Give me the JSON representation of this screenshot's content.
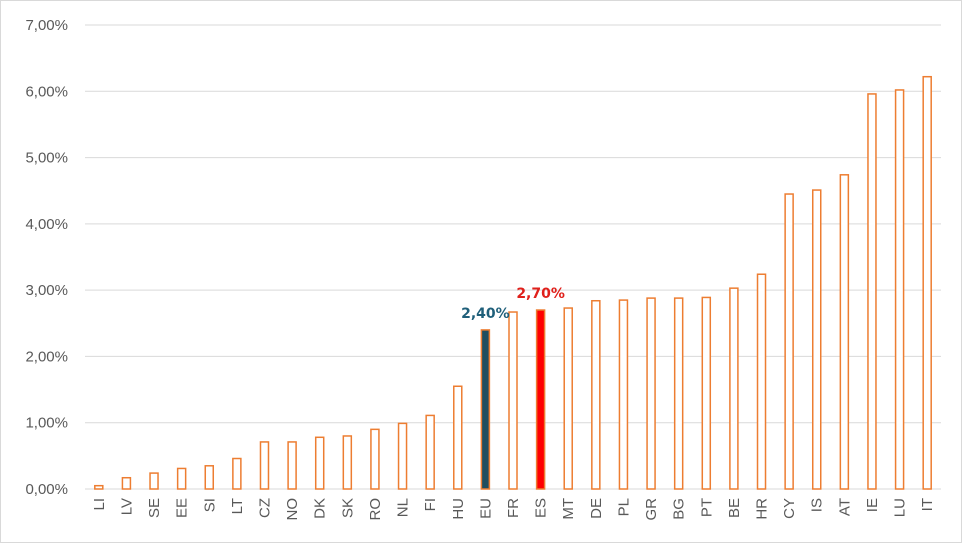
{
  "chart_data": {
    "type": "bar",
    "title": "",
    "xlabel": "",
    "ylabel": "",
    "ylim": [
      0,
      0.07
    ],
    "y_ticks": [
      {
        "value": 0.0,
        "label": "0,00%"
      },
      {
        "value": 0.01,
        "label": "1,00%"
      },
      {
        "value": 0.02,
        "label": "2,00%"
      },
      {
        "value": 0.03,
        "label": "3,00%"
      },
      {
        "value": 0.04,
        "label": "4,00%"
      },
      {
        "value": 0.05,
        "label": "5,00%"
      },
      {
        "value": 0.06,
        "label": "6,00%"
      },
      {
        "value": 0.07,
        "label": "7,00%"
      }
    ],
    "grid": true,
    "legend": "none",
    "categories": [
      "LI",
      "LV",
      "SE",
      "EE",
      "SI",
      "LT",
      "CZ",
      "NO",
      "DK",
      "SK",
      "RO",
      "NL",
      "FI",
      "HU",
      "EU",
      "FR",
      "ES",
      "MT",
      "DE",
      "PL",
      "GR",
      "BG",
      "PT",
      "BE",
      "HR",
      "CY",
      "IS",
      "AT",
      "IE",
      "LU",
      "IT"
    ],
    "values": [
      0.0005,
      0.0017,
      0.0024,
      0.0031,
      0.0035,
      0.0046,
      0.0071,
      0.0071,
      0.0078,
      0.008,
      0.009,
      0.0099,
      0.0111,
      0.0155,
      0.024,
      0.0267,
      0.027,
      0.0273,
      0.0284,
      0.0285,
      0.0288,
      0.0288,
      0.0289,
      0.0303,
      0.0324,
      0.0445,
      0.0451,
      0.0474,
      0.0596,
      0.0602,
      0.0622
    ],
    "highlights": {
      "EU": {
        "fill": "#1f4e5f",
        "stroke": "#ed7d31",
        "label": "2,40%",
        "label_color": "#1f5f7a"
      },
      "ES": {
        "fill": "#ff0000",
        "stroke": "#ed7d31",
        "label": "2,70%",
        "label_color": "#e0201b"
      }
    },
    "colors": {
      "bar_stroke": "#ed7d31",
      "bar_fill": "#ffffff",
      "grid": "#d9d9d9",
      "axis_text": "#595959"
    }
  }
}
